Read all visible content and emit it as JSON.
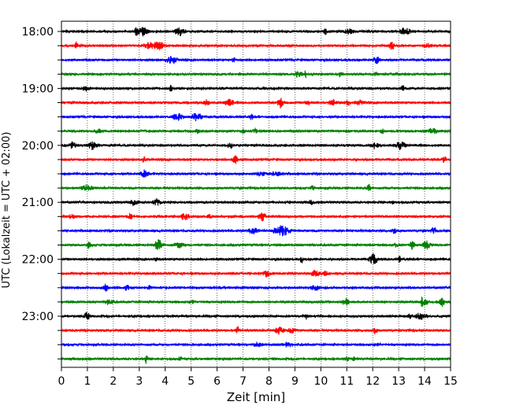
{
  "chart_data": {
    "type": "line",
    "subtype": "helicorder",
    "xlabel": "Zeit  [min]",
    "ylabel": "UTC (Lokalzeit = UTC + 02:00)",
    "xlim": [
      0,
      15
    ],
    "x_ticks": [
      "0",
      "1",
      "2",
      "3",
      "4",
      "5",
      "6",
      "7",
      "8",
      "9",
      "10",
      "11",
      "12",
      "13",
      "14",
      "15"
    ],
    "y_tick_labels": [
      "18:00",
      "19:00",
      "20:00",
      "21:00",
      "22:00",
      "23:00"
    ],
    "traces_per_hour": 4,
    "trace_count": 24,
    "trace_colors": [
      "#000000",
      "#ff0000",
      "#0000ff",
      "#008000"
    ],
    "grid": "vertical dotted lines at each minute"
  }
}
